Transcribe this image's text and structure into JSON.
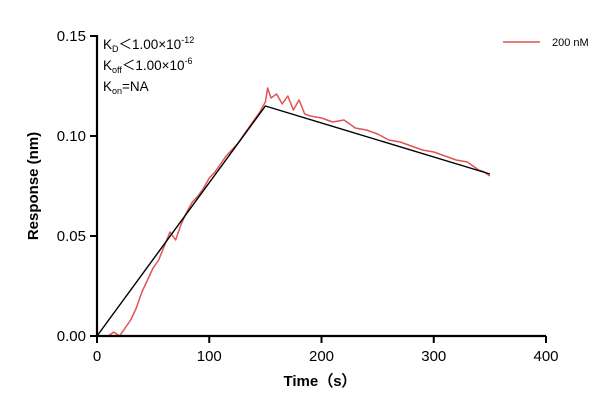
{
  "chart_data": {
    "type": "line",
    "title": "",
    "xlabel": "Time（s）",
    "ylabel": "Response (nm)",
    "xlim": [
      0,
      400
    ],
    "ylim": [
      0,
      0.15
    ],
    "x_ticks": [
      0,
      100,
      200,
      300,
      400
    ],
    "x_tick_labels": [
      "0",
      "100",
      "200",
      "300",
      "400"
    ],
    "y_ticks": [
      0,
      0.05,
      0.1,
      0.15
    ],
    "y_tick_labels": [
      "0.00",
      "0.05",
      "0.10",
      "0.15"
    ],
    "grid": false,
    "legend_position": "top-right",
    "annotations": {
      "kd": {
        "base": "K",
        "sub": "D",
        "rel": "＜1.00×10",
        "sup": "-12"
      },
      "koff": {
        "base": "K",
        "sub": "off",
        "rel": "＜1.00×10",
        "sup": "-6"
      },
      "kon": {
        "base": "K",
        "sub": "on",
        "rel": "=NA"
      }
    },
    "series": [
      {
        "name": "200 nM",
        "color": "#e05555",
        "style": "measured",
        "x": [
          0,
          10,
          15,
          20,
          25,
          30,
          35,
          40,
          45,
          50,
          55,
          60,
          65,
          70,
          75,
          80,
          85,
          90,
          95,
          100,
          105,
          110,
          115,
          120,
          125,
          130,
          135,
          140,
          145,
          150,
          152,
          155,
          160,
          165,
          170,
          175,
          180,
          185,
          190,
          200,
          210,
          220,
          230,
          240,
          250,
          260,
          270,
          280,
          290,
          300,
          310,
          320,
          330,
          340,
          345,
          350
        ],
        "y": [
          0.0,
          0.0,
          0.002,
          0.0,
          0.004,
          0.008,
          0.014,
          0.022,
          0.028,
          0.034,
          0.038,
          0.045,
          0.052,
          0.048,
          0.056,
          0.062,
          0.067,
          0.07,
          0.074,
          0.079,
          0.082,
          0.086,
          0.09,
          0.093,
          0.096,
          0.1,
          0.104,
          0.108,
          0.112,
          0.117,
          0.124,
          0.119,
          0.121,
          0.116,
          0.12,
          0.113,
          0.118,
          0.111,
          0.11,
          0.109,
          0.107,
          0.108,
          0.104,
          0.103,
          0.101,
          0.098,
          0.097,
          0.095,
          0.093,
          0.092,
          0.09,
          0.088,
          0.087,
          0.083,
          0.082,
          0.08
        ]
      },
      {
        "name": "",
        "color": "#000000",
        "style": "fit",
        "x": [
          0,
          150,
          350
        ],
        "y": [
          0.0,
          0.115,
          0.081
        ]
      }
    ]
  }
}
